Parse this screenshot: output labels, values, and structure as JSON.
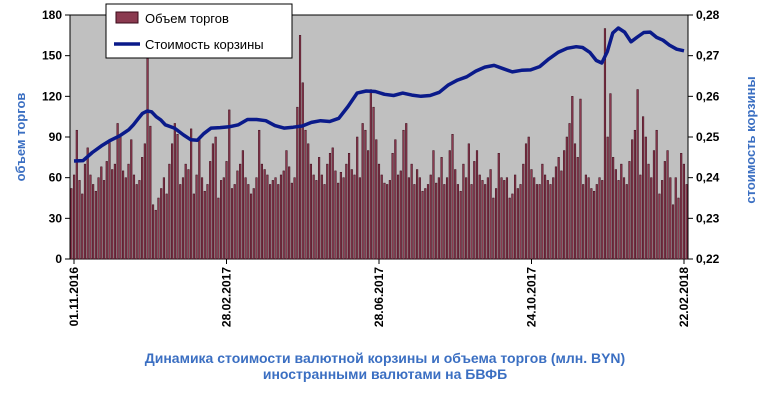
{
  "chart_data": {
    "type": "bar+line",
    "title": "Динамика  стоимости валютной корзины и объема торгов (млн. BYN) иностранными валютами на БВФБ",
    "title_lines": [
      "Динамика  стоимости валютной корзины и объема торгов (млн. BYN)",
      "иностранными валютами на БВФБ"
    ],
    "ylabel_left": "объем торгов",
    "ylabel_right": "стоимость  корзины",
    "ylim_left": [
      0,
      180
    ],
    "ylim_right": [
      0.22,
      0.28
    ],
    "yticks_left": [
      "0",
      "30",
      "60",
      "90",
      "120",
      "150",
      "180"
    ],
    "yticks_right": [
      "0,22",
      "0,23",
      "0,24",
      "0,25",
      "0,26",
      "0,27",
      "0,28"
    ],
    "x_tick_labels": [
      "01.11.2016",
      "28.02.2017",
      "28.06.2017",
      "24.10.2017",
      "22.02.2018"
    ],
    "grid": false,
    "plot_background": "#c0c0c0",
    "legend_position": "top-left",
    "series": [
      {
        "name": "Объем торгов",
        "kind": "bar",
        "axis": "left",
        "color": "#7b1f35",
        "values": [
          52,
          62,
          95,
          58,
          48,
          70,
          82,
          62,
          55,
          50,
          60,
          68,
          58,
          72,
          88,
          66,
          70,
          100,
          92,
          65,
          60,
          70,
          88,
          62,
          55,
          58,
          75,
          85,
          148,
          98,
          40,
          36,
          45,
          52,
          60,
          48,
          70,
          85,
          100,
          92,
          55,
          60,
          70,
          66,
          96,
          48,
          62,
          88,
          60,
          50,
          55,
          72,
          85,
          90,
          45,
          58,
          60,
          72,
          110,
          52,
          55,
          65,
          70,
          80,
          60,
          55,
          48,
          52,
          60,
          95,
          70,
          66,
          62,
          55,
          58,
          60,
          55,
          62,
          65,
          80,
          68,
          56,
          60,
          112,
          165,
          130,
          95,
          85,
          70,
          62,
          58,
          75,
          62,
          55,
          70,
          78,
          82,
          65,
          56,
          64,
          60,
          70,
          78,
          66,
          62,
          90,
          60,
          100,
          95,
          80,
          125,
          112,
          88,
          70,
          62,
          56,
          55,
          58,
          78,
          88,
          62,
          65,
          95,
          100,
          60,
          70,
          55,
          66,
          60,
          50,
          52,
          55,
          62,
          80,
          56,
          60,
          75,
          55,
          60,
          80,
          92,
          66,
          55,
          50,
          70,
          60,
          85,
          55,
          72,
          80,
          62,
          58,
          55,
          60,
          66,
          45,
          52,
          78,
          60,
          58,
          60,
          45,
          48,
          62,
          52,
          55,
          70,
          85,
          90,
          66,
          60,
          55,
          55,
          70,
          62,
          58,
          55,
          60,
          68,
          75,
          65,
          80,
          90,
          100,
          120,
          85,
          75,
          118,
          55,
          62,
          60,
          52,
          50,
          55,
          60,
          58,
          170,
          90,
          122,
          75,
          66,
          58,
          70,
          60,
          55,
          72,
          88,
          95,
          125,
          62,
          105,
          90,
          70,
          60,
          80,
          95,
          48,
          58,
          72,
          80,
          60,
          40,
          60,
          45,
          78,
          70,
          55
        ]
      },
      {
        "name": "Стоимость корзины",
        "kind": "line",
        "axis": "right",
        "color": "#0a1a8a",
        "points": [
          [
            0,
            0.2441
          ],
          [
            10,
            0.2442
          ],
          [
            20,
            0.2462
          ],
          [
            30,
            0.2478
          ],
          [
            40,
            0.2492
          ],
          [
            50,
            0.2503
          ],
          [
            60,
            0.2518
          ],
          [
            65,
            0.253
          ],
          [
            70,
            0.2544
          ],
          [
            75,
            0.2558
          ],
          [
            80,
            0.2564
          ],
          [
            85,
            0.2562
          ],
          [
            90,
            0.255
          ],
          [
            95,
            0.2542
          ],
          [
            100,
            0.253
          ],
          [
            110,
            0.2522
          ],
          [
            120,
            0.2505
          ],
          [
            128,
            0.2493
          ],
          [
            135,
            0.2492
          ],
          [
            142,
            0.2508
          ],
          [
            150,
            0.2522
          ],
          [
            160,
            0.2523
          ],
          [
            170,
            0.2525
          ],
          [
            180,
            0.253
          ],
          [
            190,
            0.2543
          ],
          [
            200,
            0.2543
          ],
          [
            210,
            0.254
          ],
          [
            220,
            0.2528
          ],
          [
            230,
            0.2522
          ],
          [
            240,
            0.2524
          ],
          [
            250,
            0.2527
          ],
          [
            260,
            0.2536
          ],
          [
            270,
            0.254
          ],
          [
            280,
            0.2538
          ],
          [
            290,
            0.2546
          ],
          [
            300,
            0.2575
          ],
          [
            310,
            0.2608
          ],
          [
            320,
            0.2613
          ],
          [
            330,
            0.2612
          ],
          [
            340,
            0.2605
          ],
          [
            350,
            0.2602
          ],
          [
            360,
            0.2608
          ],
          [
            370,
            0.2603
          ],
          [
            380,
            0.26
          ],
          [
            390,
            0.2602
          ],
          [
            400,
            0.261
          ],
          [
            410,
            0.2628
          ],
          [
            420,
            0.264
          ],
          [
            430,
            0.2648
          ],
          [
            440,
            0.2662
          ],
          [
            450,
            0.2672
          ],
          [
            460,
            0.2676
          ],
          [
            470,
            0.2668
          ],
          [
            480,
            0.266
          ],
          [
            490,
            0.2664
          ],
          [
            500,
            0.2665
          ],
          [
            510,
            0.2673
          ],
          [
            520,
            0.2692
          ],
          [
            530,
            0.2708
          ],
          [
            540,
            0.2718
          ],
          [
            550,
            0.2722
          ],
          [
            557,
            0.272
          ],
          [
            565,
            0.2708
          ],
          [
            572,
            0.2688
          ],
          [
            578,
            0.2682
          ],
          [
            584,
            0.271
          ],
          [
            590,
            0.2756
          ],
          [
            596,
            0.2768
          ],
          [
            603,
            0.2758
          ],
          [
            610,
            0.2734
          ],
          [
            617,
            0.2746
          ],
          [
            624,
            0.2757
          ],
          [
            631,
            0.2758
          ],
          [
            638,
            0.2745
          ],
          [
            645,
            0.2738
          ],
          [
            652,
            0.2726
          ],
          [
            660,
            0.2716
          ],
          [
            668,
            0.2712
          ]
        ]
      }
    ]
  }
}
